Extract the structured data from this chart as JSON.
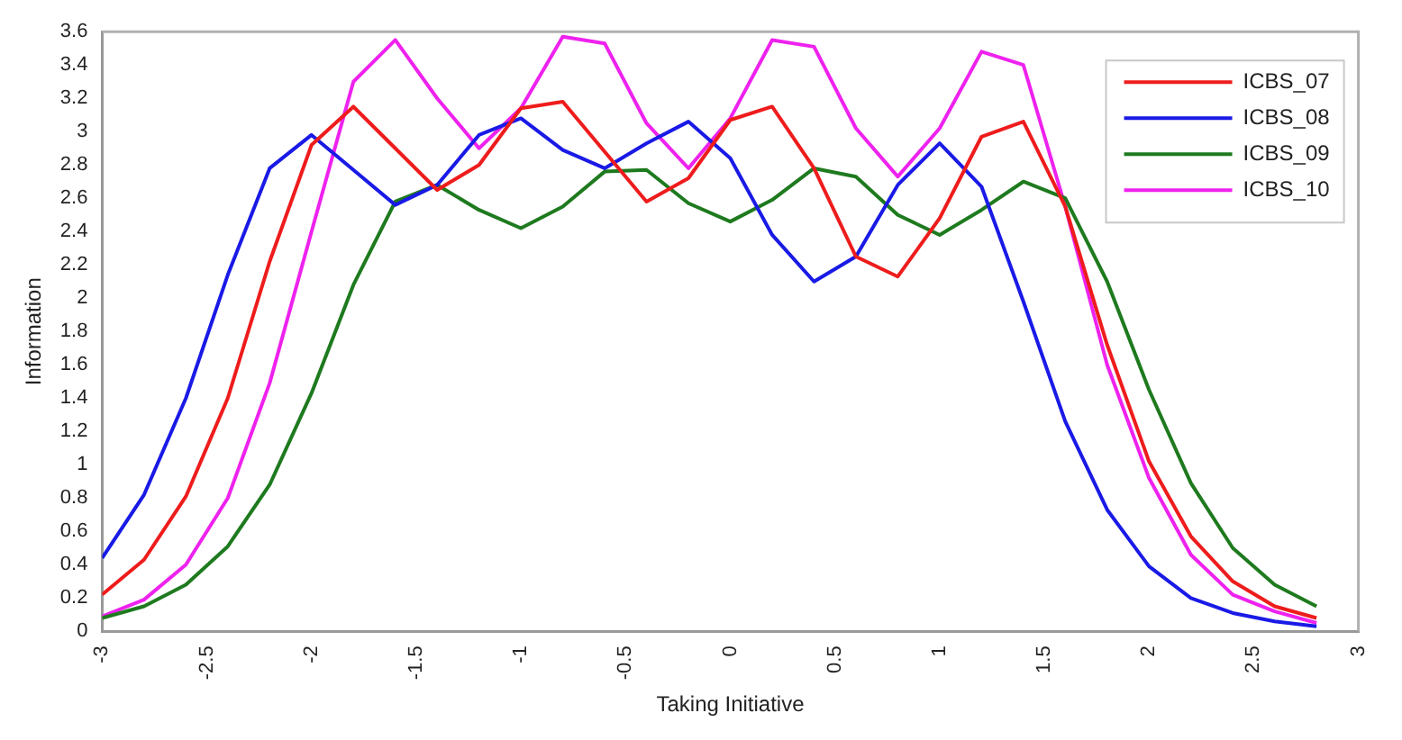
{
  "chart_data": {
    "type": "line",
    "xlabel": "Taking Initiative",
    "ylabel": "Information",
    "x": [
      -3,
      -2.8,
      -2.6,
      -2.4,
      -2.2,
      -2,
      -1.8,
      -1.6,
      -1.4,
      -1.2,
      -1,
      -0.8,
      -0.6,
      -0.4,
      -0.2,
      0,
      0.2,
      0.4,
      0.6,
      0.8,
      1,
      1.2,
      1.4,
      1.6,
      1.8,
      2,
      2.2,
      2.4,
      2.6,
      2.8
    ],
    "series": [
      {
        "name": "ICBS_07",
        "color": "#ee1c1c",
        "values": [
          0.22,
          0.43,
          0.81,
          1.4,
          2.22,
          2.92,
          3.15,
          2.9,
          2.65,
          2.8,
          3.14,
          3.18,
          2.88,
          2.58,
          2.72,
          3.07,
          3.15,
          2.78,
          2.25,
          2.13,
          2.48,
          2.97,
          3.06,
          2.55,
          1.72,
          1.02,
          0.57,
          0.3,
          0.15,
          0.08
        ]
      },
      {
        "name": "ICBS_08",
        "color": "#1a1ae6",
        "values": [
          0.44,
          0.82,
          1.4,
          2.14,
          2.78,
          2.98,
          2.77,
          2.56,
          2.68,
          2.98,
          3.08,
          2.89,
          2.78,
          2.93,
          3.06,
          2.84,
          2.38,
          2.1,
          2.25,
          2.68,
          2.93,
          2.67,
          1.98,
          1.26,
          0.73,
          0.39,
          0.2,
          0.11,
          0.06,
          0.03
        ]
      },
      {
        "name": "ICBS_09",
        "color": "#1e7a1e",
        "values": [
          0.08,
          0.15,
          0.28,
          0.51,
          0.88,
          1.43,
          2.08,
          2.58,
          2.68,
          2.53,
          2.42,
          2.55,
          2.76,
          2.77,
          2.57,
          2.46,
          2.59,
          2.78,
          2.73,
          2.5,
          2.38,
          2.53,
          2.7,
          2.6,
          2.1,
          1.45,
          0.89,
          0.5,
          0.28,
          0.15
        ]
      },
      {
        "name": "ICBS_10",
        "color": "#ee22ee",
        "values": [
          0.09,
          0.19,
          0.4,
          0.8,
          1.49,
          2.4,
          3.3,
          3.55,
          3.2,
          2.9,
          3.14,
          3.57,
          3.53,
          3.05,
          2.78,
          3.08,
          3.55,
          3.51,
          3.02,
          2.73,
          3.02,
          3.48,
          3.4,
          2.55,
          1.6,
          0.92,
          0.46,
          0.22,
          0.12,
          0.05
        ]
      }
    ],
    "xlim": [
      -3,
      3
    ],
    "xticks": [
      -3,
      -2.5,
      -2,
      -1.5,
      -1,
      -0.5,
      0,
      0.5,
      1,
      1.5,
      2,
      2.5,
      3
    ],
    "ylim": [
      0,
      3.6
    ],
    "yticks": [
      0,
      0.2,
      0.4,
      0.6,
      0.8,
      1,
      1.2,
      1.4,
      1.6,
      1.8,
      2,
      2.2,
      2.4,
      2.6,
      2.8,
      3,
      3.2,
      3.4,
      3.6
    ],
    "grid": false,
    "legend": "top right",
    "marker": "none",
    "line_style": "solid"
  }
}
